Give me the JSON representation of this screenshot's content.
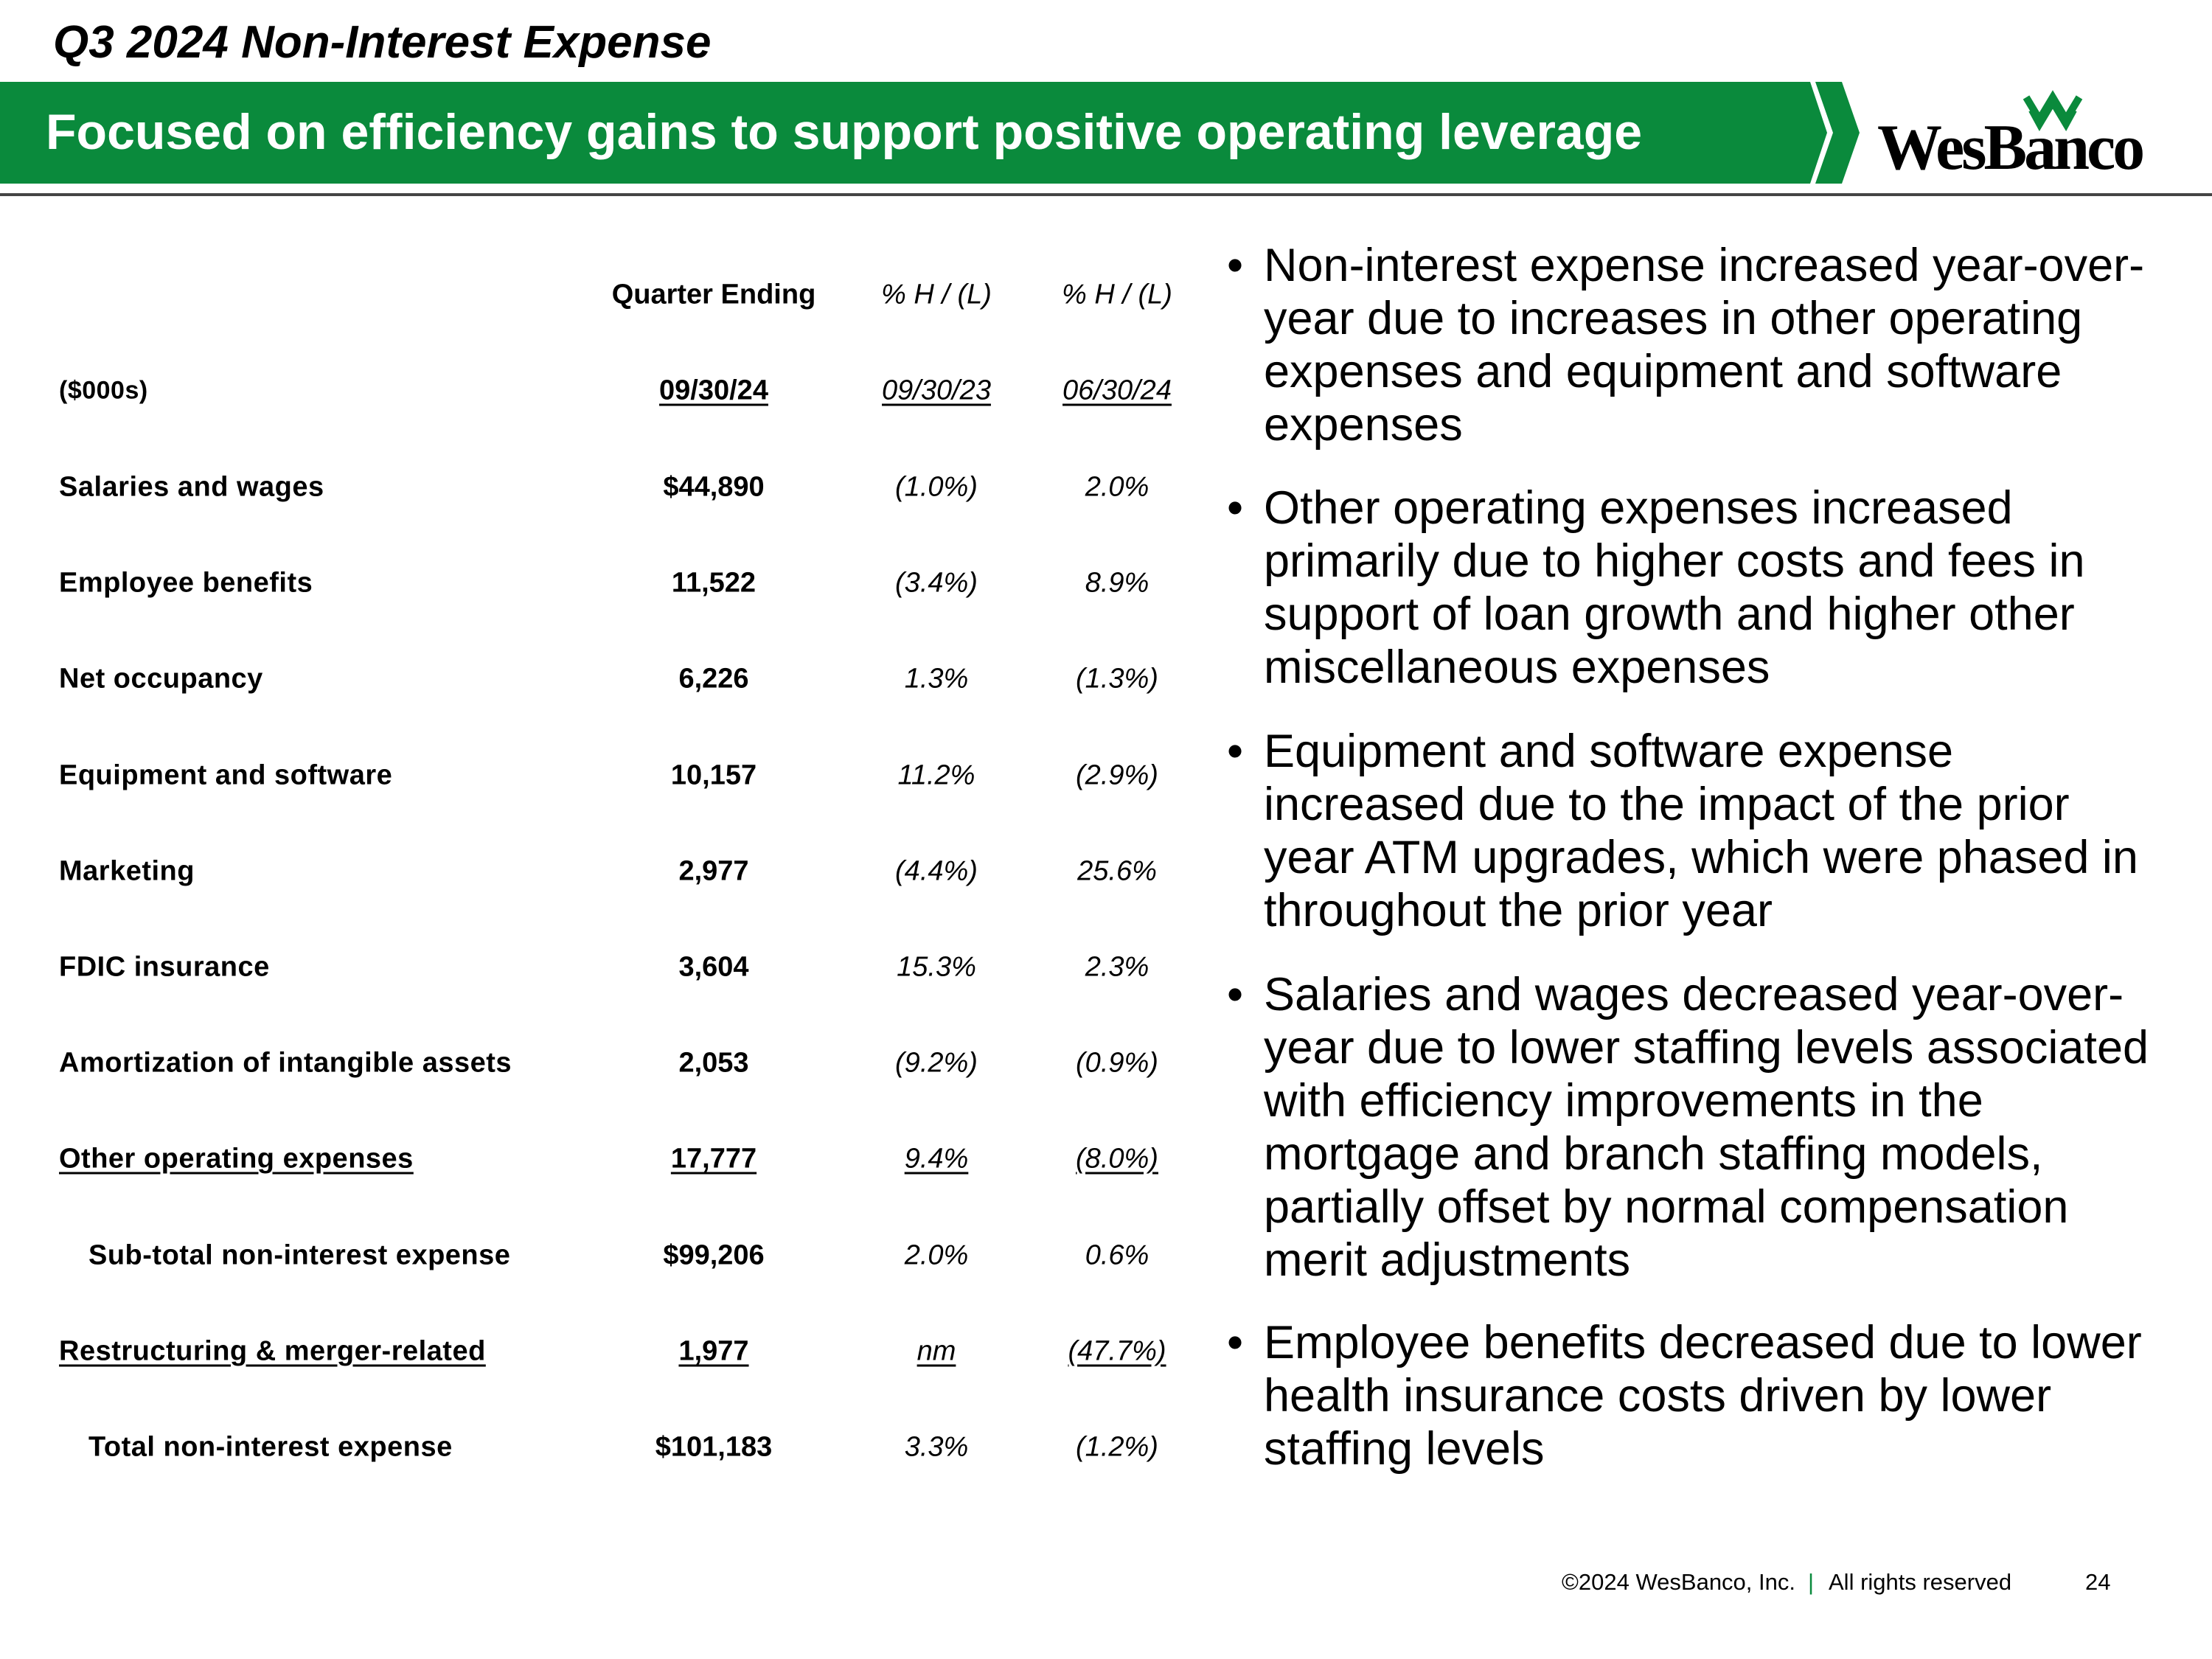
{
  "header": {
    "title": "Q3 2024 Non-Interest Expense",
    "banner": "Focused on efficiency gains to support positive operating leverage",
    "logo": "WesBanco"
  },
  "table": {
    "unit": "($000s)",
    "columns": [
      {
        "heading": "Quarter Ending",
        "date": "09/30/24"
      },
      {
        "heading": "% H / (L)",
        "date": "09/30/23"
      },
      {
        "heading": "% H / (L)",
        "date": "06/30/24"
      }
    ],
    "rows": [
      [
        "Salaries and wages",
        "$44,890",
        "(1.0%)",
        "2.0%"
      ],
      [
        "Employee benefits",
        "11,522",
        "(3.4%)",
        "8.9%"
      ],
      [
        "Net occupancy",
        "6,226",
        "1.3%",
        "(1.3%)"
      ],
      [
        "Equipment and software",
        "10,157",
        "11.2%",
        "(2.9%)"
      ],
      [
        "Marketing",
        "2,977",
        "(4.4%)",
        "25.6%"
      ],
      [
        "FDIC insurance",
        "3,604",
        "15.3%",
        "2.3%"
      ],
      [
        "Amortization of intangible assets",
        "2,053",
        "(9.2%)",
        "(0.9%)"
      ],
      [
        "Other operating expenses",
        "17,777",
        "9.4%",
        "(8.0%)"
      ],
      [
        "Sub-total non-interest expense",
        "$99,206",
        "2.0%",
        "0.6%"
      ],
      [
        "Restructuring & merger-related",
        "1,977",
        "nm",
        "(47.7%)"
      ],
      [
        "Total non-interest expense",
        "$101,183",
        "3.3%",
        "(1.2%)"
      ]
    ]
  },
  "bullets": [
    "Non-interest expense increased year-over-year due to increases in other operating expenses and equipment and software expenses",
    "Other operating expenses increased primarily due to higher costs and fees in support of loan growth and higher other miscellaneous expenses",
    "Equipment and software expense increased due to the impact of the prior year ATM upgrades, which were phased in throughout the prior year",
    "Salaries and wages decreased year-over-year due to lower staffing levels associated with efficiency improvements in the mortgage and branch staffing models, partially offset by normal compensation merit adjustments",
    "Employee benefits decreased due to lower health insurance costs driven by lower staffing levels"
  ],
  "footer": {
    "copyright": "©2024 WesBanco, Inc.",
    "separator": "|",
    "rights": "All rights reserved",
    "page": "24"
  }
}
